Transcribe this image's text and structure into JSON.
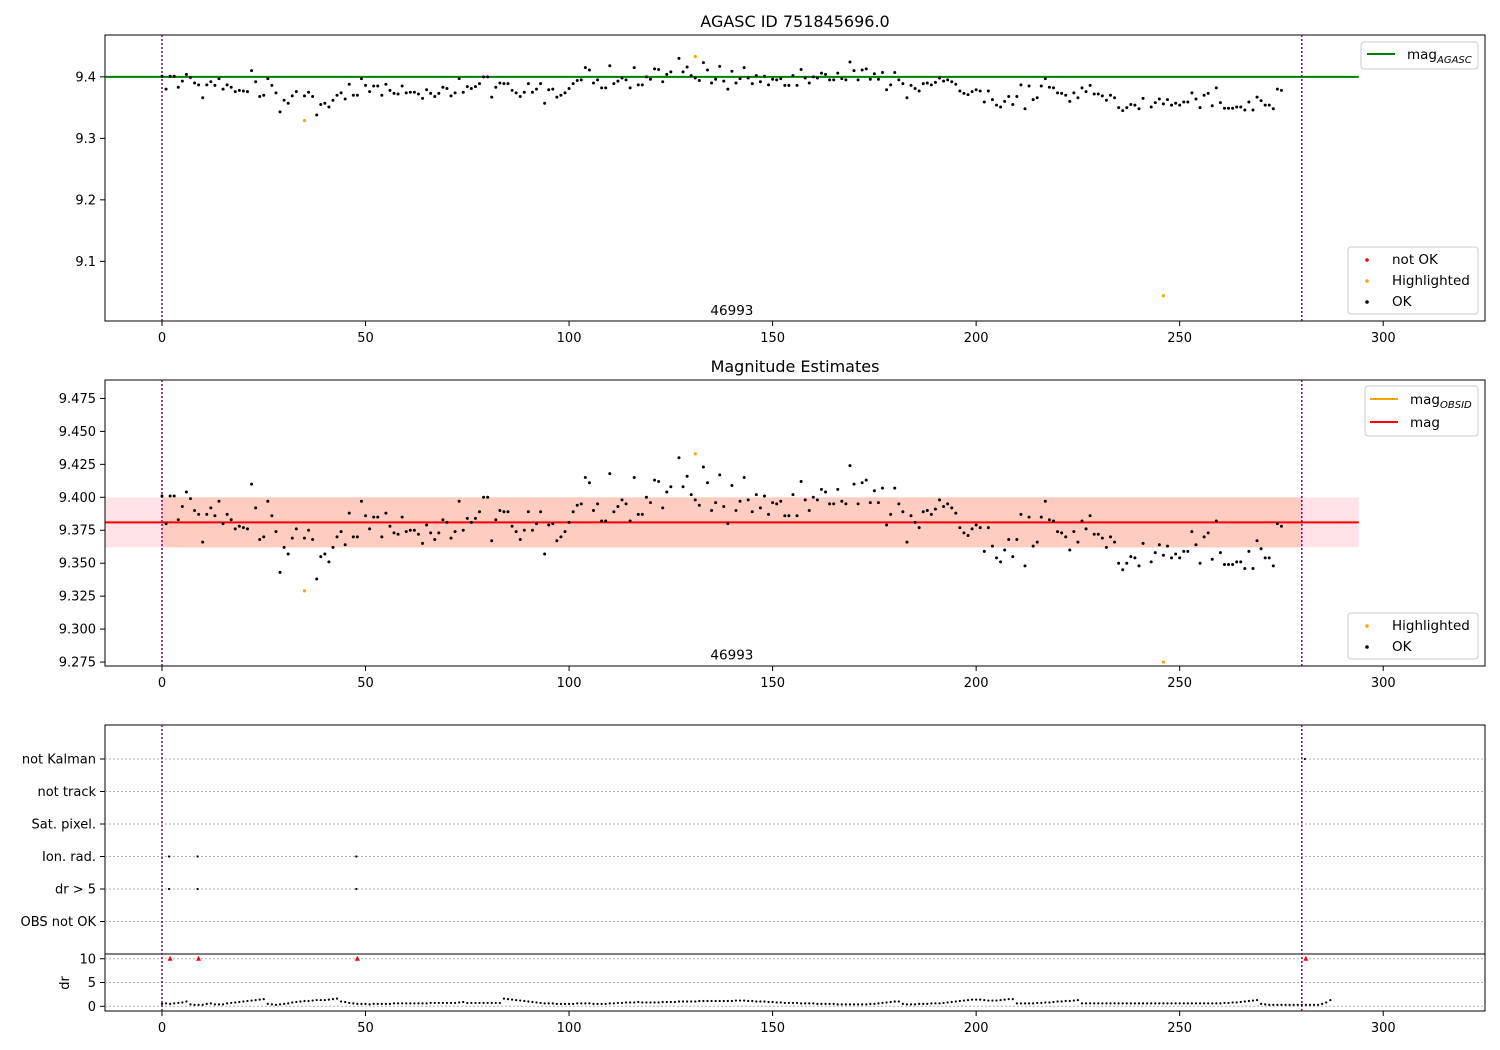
{
  "chart_data": [
    {
      "type": "scatter",
      "title": "AGASC ID 751845696.0",
      "xlim": [
        -14,
        325
      ],
      "ylim": [
        9.003,
        9.468
      ],
      "xticks": [
        "0",
        "50",
        "100",
        "150",
        "200",
        "250",
        "300"
      ],
      "yticks": [
        "9.1",
        "9.2",
        "9.3",
        "9.4"
      ],
      "annotation": {
        "text": "46993",
        "x": 140,
        "y": 9.013
      },
      "vlines": [
        0,
        280
      ],
      "reference_lines": [
        {
          "name": "mag_AGASC",
          "y": 9.4,
          "x_range": [
            -14,
            294
          ],
          "color": "#008000"
        }
      ],
      "legend_upper": {
        "placement": "upper right",
        "entries": [
          {
            "label": "mag",
            "sub": "AGASC",
            "color": "#008000"
          }
        ]
      },
      "legend_lower": {
        "placement": "lower right",
        "entries": [
          {
            "label": "not OK",
            "color": "#ff0000"
          },
          {
            "label": "Highlighted",
            "color": "#ffa500"
          },
          {
            "label": "OK",
            "color": "#000000"
          }
        ]
      },
      "series": [
        {
          "name": "OK",
          "color": "#000000",
          "values": [
            9.401,
            9.38,
            9.401,
            9.401,
            9.383,
            9.393,
            9.404,
            9.399,
            9.39,
            9.387,
            9.366,
            9.387,
            9.392,
            9.386,
            9.397,
            9.38,
            9.387,
            9.383,
            9.376,
            9.378,
            9.377,
            9.376,
            9.41,
            9.392,
            9.368,
            9.37,
            9.397,
            9.386,
            9.374,
            9.343,
            9.362,
            9.357,
            9.369,
            9.376,
            null,
            9.369,
            9.375,
            9.368,
            9.338,
            9.355,
            9.357,
            9.351,
            9.362,
            9.37,
            9.374,
            9.364,
            9.388,
            9.37,
            9.37,
            9.397,
            9.386,
            9.376,
            9.385,
            9.385,
            9.37,
            9.388,
            9.378,
            9.373,
            9.372,
            9.385,
            9.374,
            9.375,
            9.375,
            9.372,
            9.365,
            9.379,
            9.373,
            9.368,
            9.373,
            9.383,
            9.381,
            9.369,
            9.374,
            9.397,
            9.375,
            9.384,
            9.381,
            9.384,
            9.389,
            9.4,
            9.4,
            9.367,
            9.383,
            9.39,
            9.389,
            9.389,
            9.378,
            9.374,
            9.368,
            9.375,
            9.389,
            9.375,
            9.38,
            9.389,
            9.357,
            9.379,
            9.38,
            9.367,
            9.37,
            9.374,
            9.381,
            9.389,
            9.394,
            9.395,
            9.415,
            9.411,
            9.39,
            9.395,
            9.382,
            9.382,
            9.418,
            9.389,
            9.393,
            9.398,
            9.395,
            9.382,
            9.415,
            9.387,
            9.387,
            9.4,
            9.396,
            9.413,
            9.412,
            9.392,
            9.404,
            9.408,
            null,
            9.43,
            9.408,
            9.416,
            9.402,
            9.398,
            9.394,
            9.423,
            9.411,
            9.39,
            9.396,
            9.417,
            9.393,
            9.38,
            9.409,
            9.39,
            9.397,
            9.415,
            9.398,
            9.389,
            9.402,
            9.392,
            9.401,
            9.387,
            9.396,
            9.395,
            9.397,
            9.386,
            9.386,
            9.402,
            9.386,
            9.412,
            9.398,
            9.39,
            9.4,
            9.398,
            9.406,
            9.404,
            9.395,
            9.395,
            9.406,
            9.397,
            9.395,
            9.424,
            9.41,
            9.395,
            9.411,
            9.413,
            9.396,
            9.405,
            9.396,
            9.407,
            9.379,
            9.387,
            9.407,
            9.395,
            9.389,
            9.366,
            9.386,
            9.381,
            9.377,
            9.389,
            9.39,
            9.387,
            9.391,
            9.398,
            9.393,
            9.395,
            9.392,
            9.388,
            9.377,
            9.373,
            9.371,
            9.376,
            9.379,
            9.377,
            9.359,
            9.377,
            9.363,
            9.354,
            9.351,
            9.36,
            9.368,
            9.355,
            9.368,
            9.387,
            9.348,
            9.385,
            9.363,
            9.366,
            9.385,
            9.397,
            9.383,
            9.382,
            9.374,
            9.373,
            9.37,
            9.36,
            9.374,
            9.366,
            9.382,
            9.376,
            9.386,
            9.372,
            9.372,
            9.369,
            9.362,
            9.37,
            9.366,
            9.35,
            9.345,
            9.35,
            9.355,
            9.354,
            9.348,
            9.365,
            null,
            9.351,
            9.358,
            9.364,
            9.356,
            9.363,
            9.354,
            9.357,
            9.354,
            9.359,
            9.359,
            9.374,
            9.364,
            9.35,
            9.37,
            9.373,
            9.353,
            9.382,
            9.358,
            9.349,
            9.349,
            9.349,
            9.351,
            9.351,
            9.346,
            9.359,
            9.346,
            9.367,
            9.361,
            9.354,
            9.354,
            9.348,
            9.38,
            9.378
          ]
        },
        {
          "name": "Highlighted",
          "color": "#ffa500",
          "x": [
            35,
            131,
            246
          ],
          "values": [
            9.329,
            9.433,
            9.044
          ]
        }
      ]
    },
    {
      "type": "scatter",
      "title": "Magnitude Estimates",
      "xlim": [
        -14,
        325
      ],
      "ylim": [
        9.272,
        9.489
      ],
      "xticks": [
        "0",
        "50",
        "100",
        "150",
        "200",
        "250",
        "300"
      ],
      "yticks": [
        "9.275",
        "9.300",
        "9.325",
        "9.350",
        "9.375",
        "9.400",
        "9.425",
        "9.450",
        "9.475"
      ],
      "annotation": {
        "text": "46993",
        "x": 140,
        "y": 9.277
      },
      "vlines": [
        0,
        280
      ],
      "mag_line": {
        "name": "mag",
        "y": 9.381,
        "x_range": [
          -14,
          294
        ],
        "color": "#ff0000"
      },
      "bands": [
        {
          "y_range": [
            9.362,
            9.4
          ],
          "x_range": [
            -14,
            294
          ],
          "color": "#ffc0cb",
          "opacity": 0.45
        },
        {
          "y_range": [
            9.362,
            9.4
          ],
          "x_range": [
            0,
            280
          ],
          "color": "#ffa07a",
          "opacity": 0.35
        }
      ],
      "legend_upper": {
        "placement": "upper right",
        "entries": [
          {
            "label": "mag",
            "sub": "OBSID",
            "color": "#ffa500"
          },
          {
            "label": "mag",
            "sub": "",
            "color": "#ff0000"
          }
        ]
      },
      "legend_lower": {
        "placement": "lower right",
        "entries": [
          {
            "label": "Highlighted",
            "color": "#ffa500"
          },
          {
            "label": "OK",
            "color": "#000000"
          }
        ]
      },
      "series": [
        {
          "name": "Highlighted",
          "color": "#ffa500",
          "x": [
            35,
            131,
            246
          ],
          "values": [
            9.329,
            9.433,
            9.275
          ]
        }
      ]
    },
    {
      "type": "scatter",
      "xlim": [
        -14,
        325
      ],
      "xticks": [
        "0",
        "50",
        "100",
        "150",
        "200",
        "250",
        "300"
      ],
      "vlines": [
        0,
        280
      ],
      "flag_rows": [
        "not Kalman",
        "not track",
        "Sat. pixel.",
        "Ion. rad.",
        "dr > 5",
        "OBS not OK"
      ],
      "flag_points": [
        {
          "row": "Ion. rad.",
          "x": [
            1,
            8,
            47
          ]
        },
        {
          "row": "dr > 5",
          "x": [
            1,
            8,
            47
          ]
        },
        {
          "row": "not Kalman",
          "x": [
            280
          ]
        }
      ],
      "dr": {
        "ylabel": "dr",
        "ylim": [
          -1,
          11
        ],
        "yticks": [
          "0",
          "5",
          "10"
        ],
        "outliers": {
          "color": "#ff0000",
          "x": [
            1,
            8,
            47,
            280
          ],
          "values": [
            10,
            10,
            10,
            10
          ]
        },
        "values": [
          0.5,
          0.6,
          0.5,
          0.6,
          0.7,
          0.8,
          1.0,
          0.4,
          0.3,
          0.3,
          0.3,
          0.5,
          0.6,
          0.4,
          0.4,
          0.4,
          0.6,
          0.7,
          0.8,
          0.9,
          1.0,
          1.1,
          1.2,
          1.3,
          1.4,
          1.5,
          0.5,
          0.4,
          0.3,
          0.4,
          0.5,
          0.6,
          0.8,
          0.9,
          1.0,
          1.1,
          1.1,
          1.2,
          1.3,
          1.3,
          1.3,
          1.4,
          1.5,
          1.6,
          1.0,
          0.9,
          0.7,
          0.6,
          0.5,
          0.5,
          0.5,
          0.4,
          0.5,
          0.5,
          0.5,
          0.5,
          0.5,
          0.6,
          0.6,
          0.6,
          0.6,
          0.6,
          0.6,
          0.6,
          0.6,
          0.6,
          0.7,
          0.7,
          0.7,
          0.7,
          0.7,
          0.7,
          0.7,
          0.8,
          0.9,
          0.7,
          0.7,
          0.7,
          0.7,
          0.7,
          0.7,
          0.7,
          0.7,
          0.7,
          1.6,
          1.5,
          1.4,
          1.3,
          1.2,
          1.1,
          1.0,
          0.9,
          0.8,
          0.7,
          0.6,
          0.6,
          0.6,
          0.5,
          0.5,
          0.5,
          0.5,
          0.5,
          0.6,
          0.6,
          0.6,
          0.6,
          0.5,
          0.5,
          0.5,
          0.5,
          0.6,
          0.6,
          0.7,
          0.7,
          0.8,
          0.8,
          0.8,
          0.9,
          0.8,
          0.8,
          0.8,
          0.8,
          0.8,
          0.9,
          0.9,
          0.9,
          0.9,
          1.0,
          1.0,
          1.0,
          1.0,
          1.0,
          1.1,
          1.1,
          1.1,
          1.1,
          1.1,
          1.1,
          1.1,
          1.1,
          1.1,
          1.2,
          1.2,
          1.2,
          1.1,
          1.1,
          1.0,
          1.0,
          1.0,
          0.9,
          0.9,
          0.8,
          0.8,
          0.7,
          0.7,
          0.7,
          0.7,
          0.6,
          0.6,
          0.6,
          0.6,
          0.5,
          0.5,
          0.5,
          0.5,
          0.5,
          0.4,
          0.4,
          0.4,
          0.4,
          0.4,
          0.4,
          0.4,
          0.4,
          0.5,
          0.5,
          0.6,
          0.7,
          0.8,
          0.9,
          1.0,
          1.0,
          0.5,
          0.4,
          0.4,
          0.4,
          0.5,
          0.5,
          0.5,
          0.6,
          0.6,
          0.6,
          0.7,
          0.8,
          0.9,
          1.0,
          1.1,
          1.2,
          1.3,
          1.4,
          1.4,
          1.4,
          1.3,
          1.2,
          1.2,
          1.2,
          1.3,
          1.4,
          1.5,
          1.5,
          0.6,
          0.6,
          0.6,
          0.6,
          0.6,
          0.7,
          0.7,
          0.8,
          0.8,
          0.9,
          1.0,
          1.0,
          1.1,
          1.1,
          1.2,
          1.3,
          0.6,
          0.6,
          0.6,
          0.6,
          0.6,
          0.6,
          0.6,
          0.6,
          0.6,
          0.6,
          0.6,
          0.6,
          0.6,
          0.6,
          0.6,
          0.6,
          0.6,
          0.6,
          0.6,
          0.6,
          0.6,
          0.6,
          0.6,
          0.6,
          0.6,
          0.6,
          0.6,
          0.6,
          0.6,
          0.6,
          0.6,
          0.6,
          0.6,
          0.6,
          0.6,
          0.7,
          0.7,
          0.8,
          0.8,
          0.9,
          1.0,
          1.1,
          1.2,
          1.3,
          0.5,
          0.4,
          0.3,
          0.3,
          0.3,
          0.3,
          0.3,
          0.3,
          0.3,
          0.3,
          0.3,
          0.3,
          0.3,
          0.3,
          0.3,
          0.5,
          0.8,
          1.3
        ]
      }
    }
  ]
}
